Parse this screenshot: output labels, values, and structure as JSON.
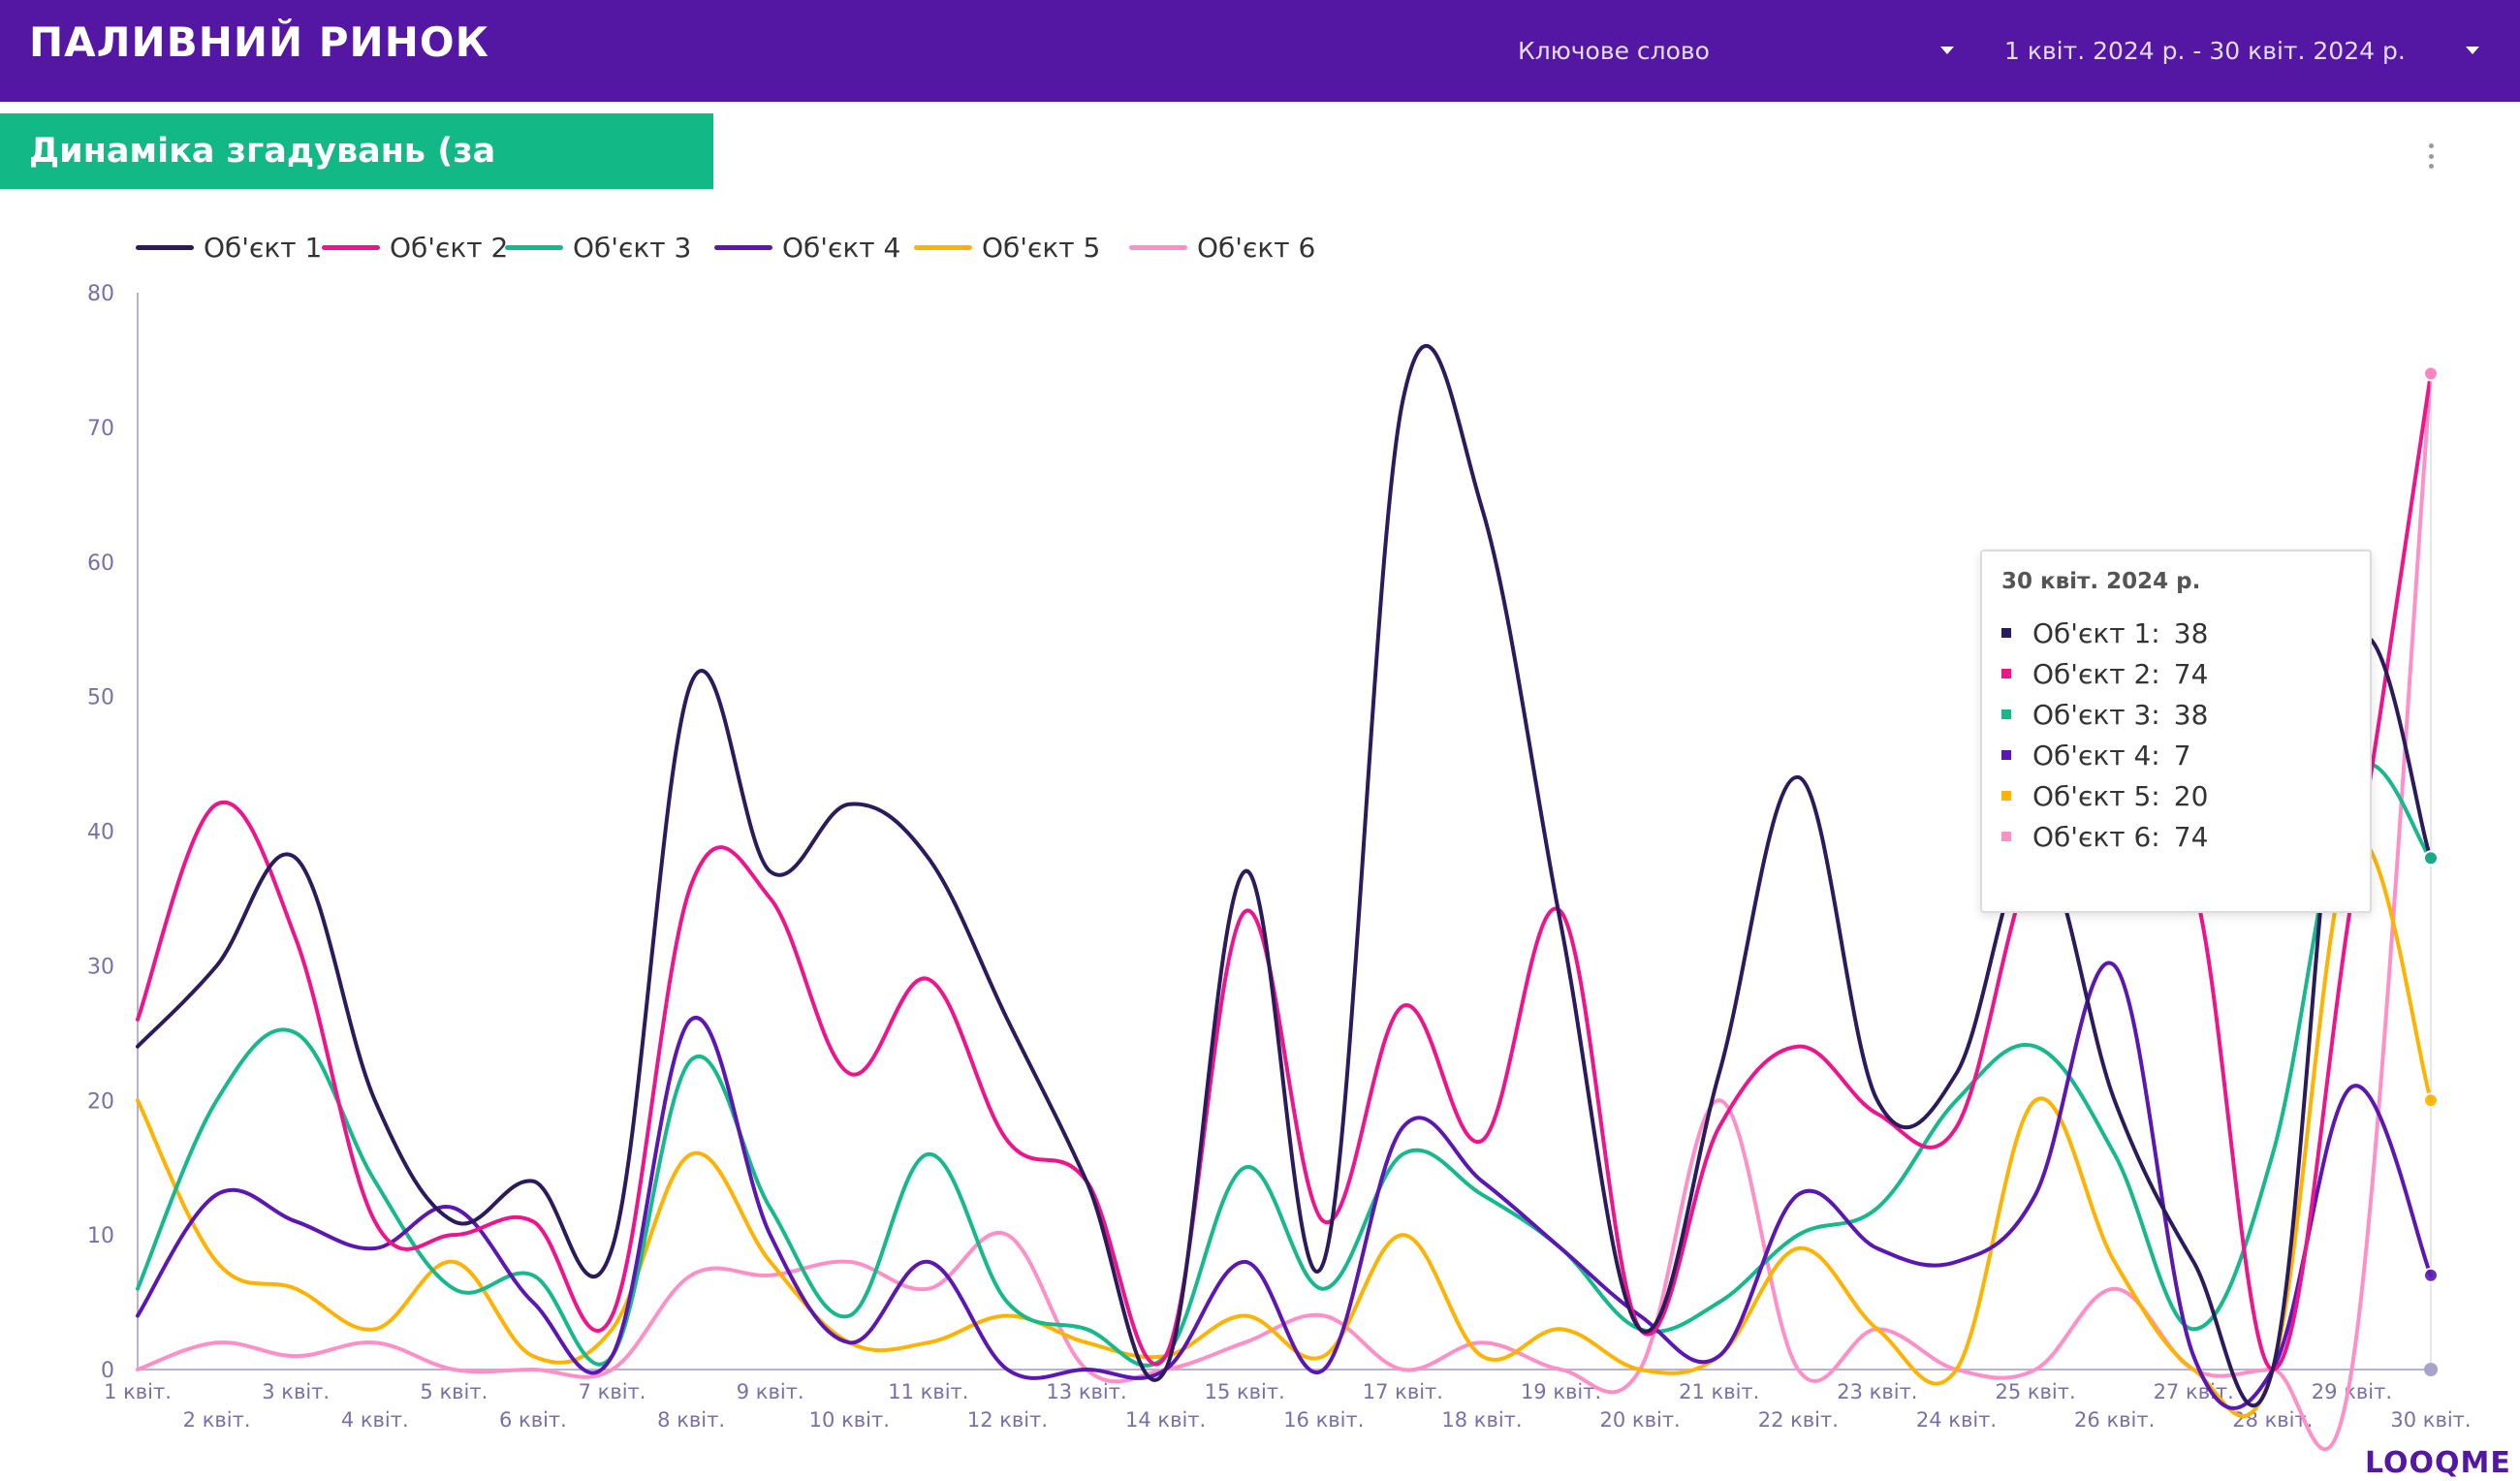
{
  "header": {
    "title": "ПАЛИВНИЙ РИНОК",
    "keyword_filter": "Ключове слово",
    "date_filter": "1 квіт. 2024 р. - 30 квіт. 2024 р."
  },
  "section": {
    "title": "Динаміка згадувань (за об'єктами)"
  },
  "logo": "LOOQME",
  "tooltip": {
    "title": "30 квіт. 2024 р.",
    "rows": [
      {
        "name": "Об'єкт 1:",
        "value": "38",
        "color": "#2b1b5c"
      },
      {
        "name": "Об'єкт 2:",
        "value": "74",
        "color": "#f0148c"
      },
      {
        "name": "Об'єкт 3:",
        "value": "38",
        "color": "#16b98b"
      },
      {
        "name": "Об'єкт 4:",
        "value": "7",
        "color": "#5b16b3"
      },
      {
        "name": "Об'єкт 5:",
        "value": "20",
        "color": "#ffb300"
      },
      {
        "name": "Об'єкт 6:",
        "value": "74",
        "color": "#ff8fc6"
      }
    ]
  },
  "chart_data": {
    "type": "line",
    "ylim": [
      0,
      80
    ],
    "yticks": [
      0,
      10,
      20,
      30,
      40,
      50,
      60,
      70,
      80
    ],
    "grid": false,
    "legend_position": "top-left",
    "categories": [
      "1 квіт.",
      "2 квіт.",
      "3 квіт.",
      "4 квіт.",
      "5 квіт.",
      "6 квіт.",
      "7 квіт.",
      "8 квіт.",
      "9 квіт.",
      "10 квіт.",
      "11 квіт.",
      "12 квіт.",
      "13 квіт.",
      "14 квіт.",
      "15 квіт.",
      "16 квіт.",
      "17 квіт.",
      "18 квіт.",
      "19 квіт.",
      "20 квіт.",
      "21 квіт.",
      "22 квіт.",
      "23 квіт.",
      "24 квіт.",
      "25 квіт.",
      "26 квіт.",
      "27 квіт.",
      "28 квіт.",
      "29 квіт.",
      "30 квіт."
    ],
    "series": [
      {
        "name": "Об'єкт 1",
        "color": "#2b1b5c",
        "values": [
          24,
          30,
          38,
          20,
          11,
          14,
          9,
          51,
          37,
          42,
          38,
          26,
          14,
          0,
          37,
          8,
          72,
          64,
          33,
          3,
          22,
          44,
          20,
          22,
          39,
          20,
          8,
          0,
          53,
          38
        ]
      },
      {
        "name": "Об'єкт 2",
        "color": "#f0148c",
        "values": [
          26,
          42,
          32,
          11,
          10,
          11,
          4,
          36,
          35,
          22,
          29,
          17,
          14,
          1,
          34,
          11,
          27,
          17,
          34,
          3,
          18,
          24,
          19,
          18,
          38,
          37,
          36,
          0,
          35,
          74
        ]
      },
      {
        "name": "Об'єкт 3",
        "color": "#16b98b",
        "values": [
          6,
          20,
          25,
          14,
          6,
          7,
          1,
          23,
          12,
          4,
          16,
          5,
          3,
          1,
          15,
          6,
          16,
          13,
          9,
          3,
          5,
          10,
          12,
          20,
          24,
          16,
          3,
          16,
          44,
          38
        ]
      },
      {
        "name": "Об'єкт 4",
        "color": "#5b16b3",
        "values": [
          4,
          13,
          11,
          9,
          12,
          5,
          1,
          26,
          10,
          2,
          8,
          0,
          0,
          0,
          8,
          0,
          18,
          14,
          9,
          4,
          1,
          13,
          9,
          8,
          13,
          30,
          1,
          0,
          21,
          7
        ]
      },
      {
        "name": "Об'єкт 5",
        "color": "#ffb300",
        "values": [
          20,
          8,
          6,
          3,
          8,
          1,
          3,
          16,
          8,
          2,
          2,
          4,
          2,
          1,
          4,
          1,
          10,
          1,
          3,
          0,
          1,
          9,
          3,
          0,
          20,
          8,
          0,
          0,
          39,
          20
        ]
      },
      {
        "name": "Об'єкт 6",
        "color": "#ff8fc6",
        "values": [
          0,
          2,
          1,
          2,
          0,
          0,
          0,
          7,
          7,
          8,
          6,
          10,
          0,
          0,
          2,
          4,
          0,
          2,
          0,
          0,
          20,
          0,
          3,
          0,
          0,
          6,
          0,
          0,
          0,
          74
        ]
      }
    ]
  }
}
